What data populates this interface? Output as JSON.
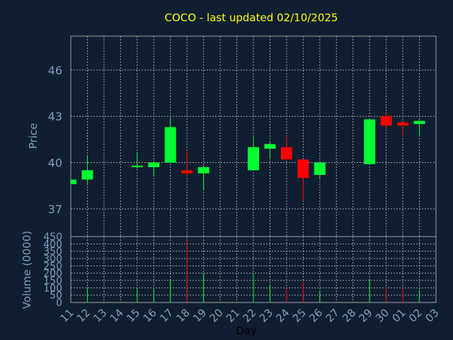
{
  "chart_data": [
    {
      "type": "candlestick",
      "title": "COCO - last updated 02/10/2025",
      "ylabel": "Price",
      "ylim": [
        35.2,
        48.2
      ],
      "yticks": [
        37,
        40,
        43,
        46
      ],
      "ytick_labels": [
        "37",
        "40",
        "43",
        "46"
      ],
      "grid": true,
      "colors": {
        "up": "#00ff33",
        "down": "#ff0000",
        "grid": "#a0a0a0",
        "axis_text": "#7f9fbf",
        "title": "#ffff00",
        "background": "#0f1e30"
      },
      "candles": [
        {
          "day": "11",
          "open": 38.6,
          "high": 38.9,
          "low": 38.6,
          "close": 38.9
        },
        {
          "day": "12",
          "open": 38.9,
          "high": 40.4,
          "low": 38.6,
          "close": 39.5
        },
        {
          "day": "15",
          "open": 39.7,
          "high": 40.7,
          "low": 39.6,
          "close": 39.8
        },
        {
          "day": "16",
          "open": 39.7,
          "high": 40.0,
          "low": 39.1,
          "close": 40.0
        },
        {
          "day": "17",
          "open": 40.0,
          "high": 42.9,
          "low": 40.0,
          "close": 42.3
        },
        {
          "day": "18",
          "open": 39.5,
          "high": 40.8,
          "low": 39.1,
          "close": 39.3
        },
        {
          "day": "19",
          "open": 39.3,
          "high": 39.8,
          "low": 38.2,
          "close": 39.7
        },
        {
          "day": "22",
          "open": 39.5,
          "high": 41.7,
          "low": 39.5,
          "close": 41.0
        },
        {
          "day": "23",
          "open": 40.9,
          "high": 41.3,
          "low": 40.2,
          "close": 41.2
        },
        {
          "day": "24",
          "open": 41.0,
          "high": 41.7,
          "low": 40.2,
          "close": 40.2
        },
        {
          "day": "25",
          "open": 40.2,
          "high": 40.2,
          "low": 37.5,
          "close": 39.0
        },
        {
          "day": "26",
          "open": 39.2,
          "high": 40.0,
          "low": 39.0,
          "close": 40.0
        },
        {
          "day": "29",
          "open": 39.9,
          "high": 42.8,
          "low": 39.9,
          "close": 42.8
        },
        {
          "day": "30",
          "open": 43.0,
          "high": 43.2,
          "low": 42.2,
          "close": 42.4
        },
        {
          "day": "01",
          "open": 42.6,
          "high": 42.6,
          "low": 41.7,
          "close": 42.4
        },
        {
          "day": "02",
          "open": 42.5,
          "high": 42.8,
          "low": 41.7,
          "close": 42.7
        }
      ]
    },
    {
      "type": "bar",
      "ylabel": "Volume (0000)",
      "xlabel": "Day",
      "ylim": [
        0,
        450
      ],
      "yticks": [
        0,
        50,
        100,
        150,
        200,
        250,
        300,
        350,
        400,
        450
      ],
      "ytick_labels": [
        "0",
        "50",
        "100",
        "150",
        "200",
        "250",
        "300",
        "350",
        "400",
        "450"
      ],
      "categories": [
        "11",
        "12",
        "13",
        "14",
        "15",
        "16",
        "17",
        "18",
        "19",
        "20",
        "21",
        "22",
        "23",
        "24",
        "25",
        "26",
        "27",
        "28",
        "29",
        "30",
        "01",
        "02",
        "03"
      ],
      "values": [
        0,
        105,
        0,
        0,
        100,
        90,
        160,
        420,
        200,
        0,
        0,
        195,
        120,
        95,
        140,
        80,
        0,
        0,
        160,
        100,
        95,
        85,
        0
      ]
    }
  ]
}
